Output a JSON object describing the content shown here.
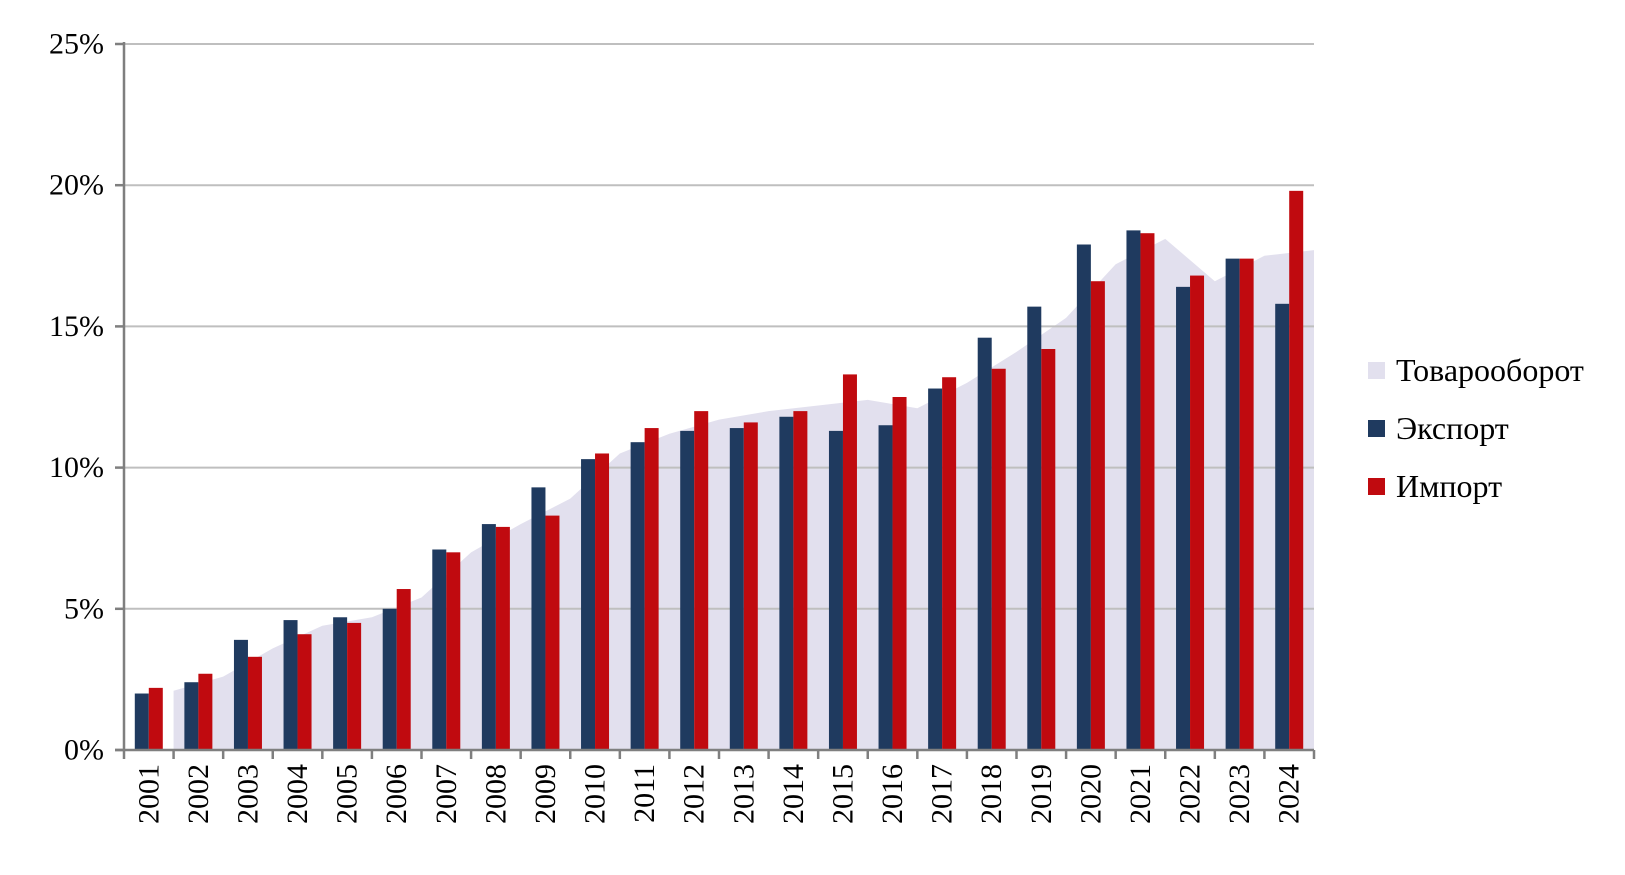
{
  "chart_data": {
    "type": "bar",
    "subtype": "clustered-bars-with-area",
    "title": "",
    "categories": [
      "2001",
      "2002",
      "2003",
      "2004",
      "2005",
      "2006",
      "2007",
      "2008",
      "2009",
      "2010",
      "2011",
      "2012",
      "2013",
      "2014",
      "2015",
      "2016",
      "2017",
      "2018",
      "2019",
      "2020",
      "2021",
      "2022",
      "2023",
      "2024"
    ],
    "series": [
      {
        "name": "Товарооборот",
        "type": "area",
        "color": "#E2E0EE",
        "values": [
          2.1,
          2.6,
          3.6,
          4.4,
          4.7,
          5.4,
          7.0,
          8.0,
          8.9,
          10.5,
          11.2,
          11.7,
          12.0,
          12.2,
          12.4,
          12.1,
          13.0,
          14.1,
          15.3,
          17.2,
          18.1,
          16.6,
          17.5,
          17.7
        ]
      },
      {
        "name": "Экспорт",
        "type": "bar",
        "color": "#1F3A5F",
        "values": [
          2.0,
          2.4,
          3.9,
          4.6,
          4.7,
          5.0,
          7.1,
          8.0,
          9.3,
          10.3,
          10.9,
          11.3,
          11.4,
          11.8,
          11.3,
          11.5,
          12.8,
          14.6,
          15.7,
          17.9,
          18.4,
          16.4,
          17.4,
          15.8
        ]
      },
      {
        "name": "Импорт",
        "type": "bar",
        "color": "#C00A0F",
        "values": [
          2.2,
          2.7,
          3.3,
          4.1,
          4.5,
          5.7,
          7.0,
          7.9,
          8.3,
          10.5,
          11.4,
          12.0,
          11.6,
          12.0,
          13.3,
          12.5,
          13.2,
          13.5,
          14.2,
          16.6,
          18.3,
          16.8,
          17.4,
          19.8
        ]
      }
    ],
    "ylim": [
      0,
      25
    ],
    "ytick_step": 5,
    "yticks": [
      "0%",
      "5%",
      "10%",
      "15%",
      "20%",
      "25%"
    ],
    "xlabel": "",
    "ylabel": "",
    "grid": true,
    "legend_position": "right",
    "colors": {
      "grid_line": "#BFBFBF",
      "axis_line": "#7F7F7F",
      "text": "#000000",
      "background": "#FFFFFF"
    }
  }
}
